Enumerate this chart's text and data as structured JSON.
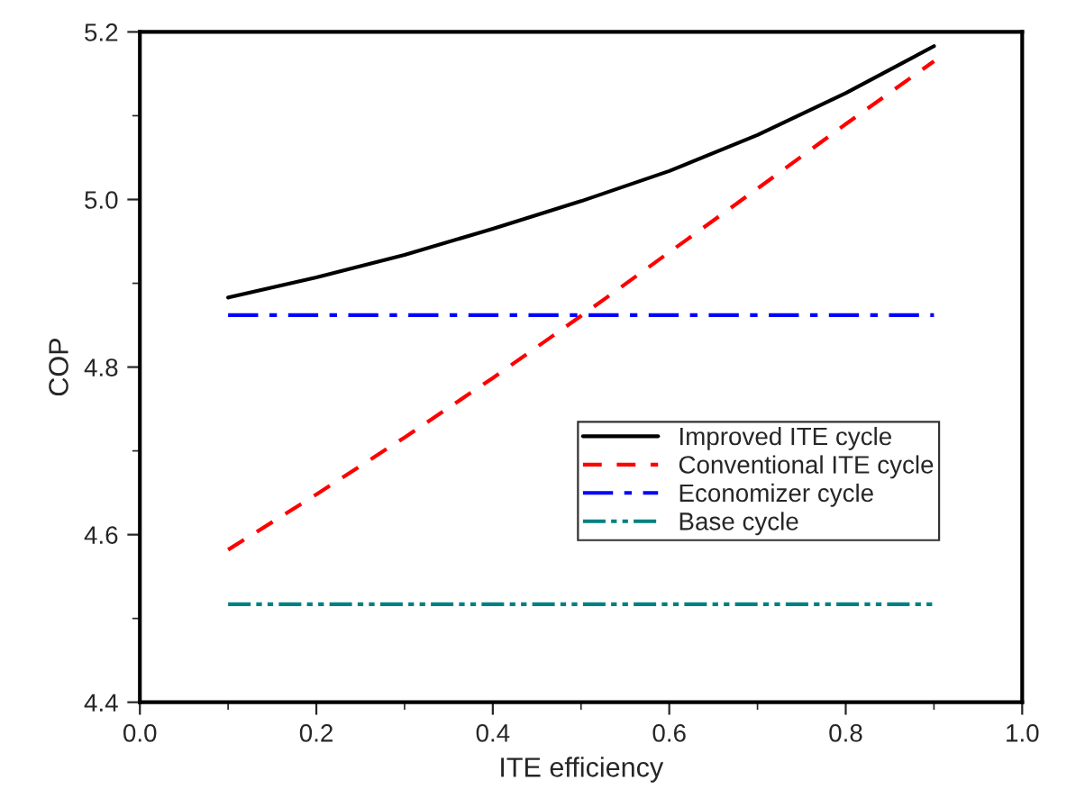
{
  "chart_data": {
    "type": "line",
    "xlabel": "ITE efficiency",
    "ylabel": "COP",
    "x": [
      0.1,
      0.2,
      0.3,
      0.4,
      0.5,
      0.6,
      0.7,
      0.8,
      0.9
    ],
    "series": [
      {
        "name": "Improved ITE cycle",
        "color": "#000000",
        "line_style": "solid",
        "values": [
          4.883,
          4.907,
          4.934,
          4.965,
          4.998,
          5.034,
          5.077,
          5.127,
          5.183
        ]
      },
      {
        "name": "Conventional ITE cycle",
        "color": "#ff0000",
        "line_style": "dashed",
        "values": [
          4.582,
          4.648,
          4.716,
          4.787,
          4.861,
          4.937,
          5.013,
          5.09,
          5.165
        ]
      },
      {
        "name": "Economizer cycle",
        "color": "#0000ff",
        "line_style": "dashdot",
        "values": [
          4.862,
          4.862,
          4.862,
          4.862,
          4.862,
          4.862,
          4.862,
          4.862,
          4.862
        ]
      },
      {
        "name": "Base cycle",
        "color": "#008080",
        "line_style": "dashdotdot",
        "values": [
          4.517,
          4.517,
          4.517,
          4.517,
          4.517,
          4.517,
          4.517,
          4.517,
          4.517
        ]
      }
    ],
    "xlim": [
      0.0,
      1.0
    ],
    "xticks": [
      {
        "value": 0,
        "label": "0.0"
      },
      0.2,
      0.4,
      0.6,
      0.8,
      {
        "value": 1,
        "label": "1.0"
      }
    ],
    "ylim": [
      4.4,
      5.2
    ],
    "yticks": [
      4.4,
      4.6,
      4.8,
      {
        "value": 5,
        "label": "5.0"
      },
      5.2
    ],
    "grid": false,
    "legend": "center right",
    "marker": "none"
  }
}
